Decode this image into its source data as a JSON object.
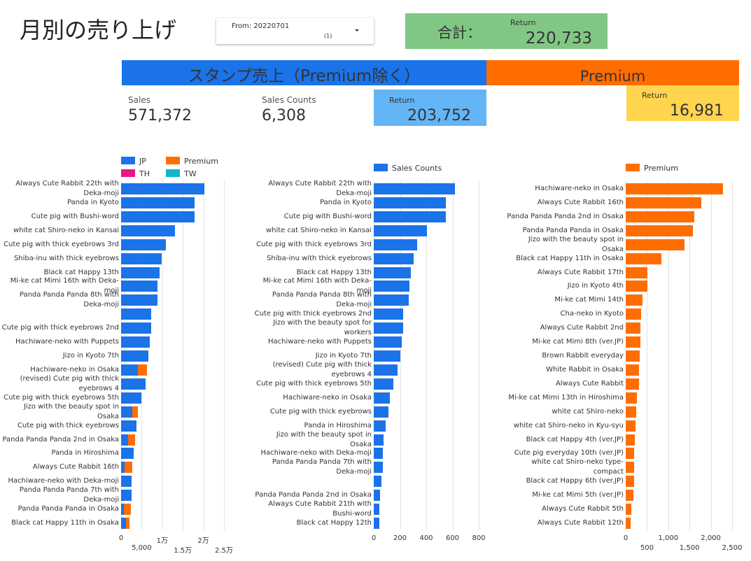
{
  "header": {
    "title": "月別の売り上げ",
    "date_filter": {
      "label": "From: 20220701",
      "count": "(1)"
    },
    "total": {
      "label": "合計：",
      "metric": "Return",
      "value": "220,733"
    }
  },
  "sections": {
    "stamp": "スタンプ売上（Premium除く）",
    "premium": "Premium"
  },
  "scorecards": [
    {
      "label": "Sales",
      "value": "571,372"
    },
    {
      "label": "Sales Counts",
      "value": "6,308"
    },
    {
      "label": "Return",
      "value": "203,752"
    },
    {
      "label": "Return",
      "value": "16,981"
    }
  ],
  "chart_data": [
    {
      "type": "bar",
      "orientation": "horizontal",
      "stacked": true,
      "grid": true,
      "legend": "top",
      "categories": [
        "Always Cute Rabbit 22th with Deka-moji",
        "Panda in Kyoto",
        "Cute pig with Bushi-word",
        "white cat Shiro-neko in Kansai",
        "Cute pig with thick eyebrows 3rd",
        "Shiba-inu with thick eyebrows",
        "Black cat Happy 13th",
        "Mi-ke cat Mimi 16th with Deka-moji",
        "Panda Panda Panda 8th with Deka-moji",
        null,
        "Cute pig with thick eyebrows 2nd",
        "Hachiware-neko with Puppets",
        "Jizo in Kyoto 7th",
        "Hachiware-neko in Osaka",
        "(revised) Cute pig with thick eyebrows 4",
        "Cute pig with thick eyebrows 5th",
        "Jizo with the beauty spot in Osaka",
        "Cute pig with thick eyebrows",
        "Panda Panda Panda 2nd in Osaka",
        "Panda in Hiroshima",
        "Always Cute Rabbit 16th",
        "Hachiware-neko with Deka-moji",
        "Panda Panda Panda 7th with Deka-moji",
        "Panda Panda Panda in Osaka",
        "Black cat Happy 11th in Osaka"
      ],
      "series": [
        {
          "name": "JP",
          "color": "#1a73e8",
          "values": [
            20200,
            17800,
            17800,
            13100,
            10850,
            9800,
            9300,
            8800,
            8800,
            7300,
            7300,
            6950,
            6600,
            4050,
            5950,
            4900,
            2700,
            3700,
            1700,
            3050,
            850,
            2550,
            2550,
            700,
            1200
          ]
        },
        {
          "name": "Premium",
          "color": "#ff6d01",
          "values": [
            0,
            0,
            0,
            0,
            0,
            0,
            0,
            0,
            0,
            0,
            0,
            0,
            0,
            2200,
            0,
            0,
            1350,
            0,
            1700,
            0,
            1850,
            0,
            0,
            1700,
            850
          ]
        },
        {
          "name": "TH",
          "color": "#e8168a",
          "values": [
            0,
            0,
            0,
            0,
            0,
            0,
            0,
            0,
            0,
            0,
            0,
            0,
            0,
            0,
            0,
            0,
            0,
            0,
            0,
            0,
            0,
            0,
            0,
            0,
            0
          ]
        },
        {
          "name": "TW",
          "color": "#12b5cb",
          "values": [
            0,
            0,
            0,
            0,
            0,
            0,
            0,
            0,
            0,
            0,
            0,
            0,
            0,
            0,
            0,
            0,
            0,
            0,
            0,
            0,
            0,
            0,
            0,
            0,
            0
          ]
        }
      ],
      "xlim": [
        0,
        25000
      ],
      "xticks": [
        0,
        {
          "value": 5000,
          "label": "5,000"
        },
        {
          "value": 10000,
          "label": "1万"
        },
        {
          "value": 15000,
          "label": "1.5万"
        },
        {
          "value": 20000,
          "label": "2万"
        },
        {
          "value": 25000,
          "label": "2.5万"
        }
      ]
    },
    {
      "type": "bar",
      "orientation": "horizontal",
      "stacked": false,
      "grid": true,
      "legend": "top",
      "categories": [
        "Always Cute Rabbit 22th with Deka-moji",
        "Panda in Kyoto",
        "Cute pig with Bushi-word",
        "white cat Shiro-neko in Kansai",
        "Cute pig with thick eyebrows 3rd",
        "Shiba-inu with thick eyebrows",
        "Black cat Happy 13th",
        "Mi-ke cat Mimi 16th with Deka-moji",
        "Panda Panda Panda 8th with Deka-moji",
        "Cute pig with thick eyebrows 2nd",
        "Jizo with the beauty spot for workers",
        "Hachiware-neko with Puppets",
        "Jizo in Kyoto 7th",
        "(revised) Cute pig with thick eyebrows 4",
        "Cute pig with thick eyebrows 5th",
        "Hachiware-neko in Osaka",
        "Cute pig with thick eyebrows",
        "Panda in Hiroshima",
        "Jizo with the beauty spot in Osaka",
        "Hachiware-neko with Deka-moji",
        "Panda Panda Panda 7th with Deka-moji",
        null,
        "Panda Panda Panda 2nd in Osaka",
        "Always Cute Rabbit 21th with Bushi-word",
        "Black cat Happy 12th"
      ],
      "series": [
        {
          "name": "Sales Counts",
          "color": "#1a73e8",
          "values": [
            620,
            550,
            550,
            405,
            330,
            305,
            280,
            270,
            265,
            225,
            225,
            215,
            200,
            180,
            150,
            120,
            110,
            90,
            75,
            70,
            70,
            60,
            50,
            40,
            40
          ]
        }
      ],
      "xlim": [
        0,
        800
      ],
      "xticks": [
        0,
        200,
        400,
        600,
        800
      ]
    },
    {
      "type": "bar",
      "orientation": "horizontal",
      "stacked": false,
      "grid": true,
      "legend": "top",
      "categories": [
        "Hachiware-neko in Osaka",
        "Always Cute Rabbit 16th",
        "Panda Panda Panda 2nd in Osaka",
        "Panda Panda Panda in Osaka",
        "Jizo with the beauty spot in Osaka",
        "Black cat Happy 11th in Osaka",
        "Always Cute Rabbit 17th",
        "Jizo in Kyoto 4th",
        "Mi-ke cat Mimi 14th",
        "Cha-neko in Kyoto",
        "Always Cute Rabbit 2nd",
        "Mi-ke cat Mimi 8th (ver.JP)",
        "Brown Rabbit everyday",
        "White Rabbit in Osaka",
        "Always Cute Rabbit",
        "Mi-ke cat Mimi 13th in Hiroshima",
        "white cat Shiro-neko",
        "white cat Shiro-neko in Kyu-syu",
        "Black cat Happy 4th (ver.JP)",
        "Cute pig everyday 10th (ver.JP)",
        "white cat Shiro-neko type-compact",
        "Black cat Happy 6th (ver.JP)",
        "Mi-ke cat Mimi 5th (ver.JP)",
        "Always Cute Rabbit 5th",
        "Always Cute Rabbit 12th"
      ],
      "series": [
        {
          "name": "Premium",
          "color": "#ff6d01",
          "values": [
            2290,
            1780,
            1615,
            1580,
            1385,
            840,
            510,
            510,
            395,
            360,
            345,
            345,
            330,
            315,
            315,
            265,
            245,
            230,
            215,
            200,
            200,
            200,
            180,
            130,
            115
          ]
        }
      ],
      "xlim": [
        0,
        2500
      ],
      "xticks": [
        0,
        500,
        {
          "value": 1000,
          "label": "1,000"
        },
        {
          "value": 1500,
          "label": "1,500"
        },
        {
          "value": 2000,
          "label": "2,000"
        },
        {
          "value": 2500,
          "label": "2,500"
        }
      ]
    }
  ]
}
